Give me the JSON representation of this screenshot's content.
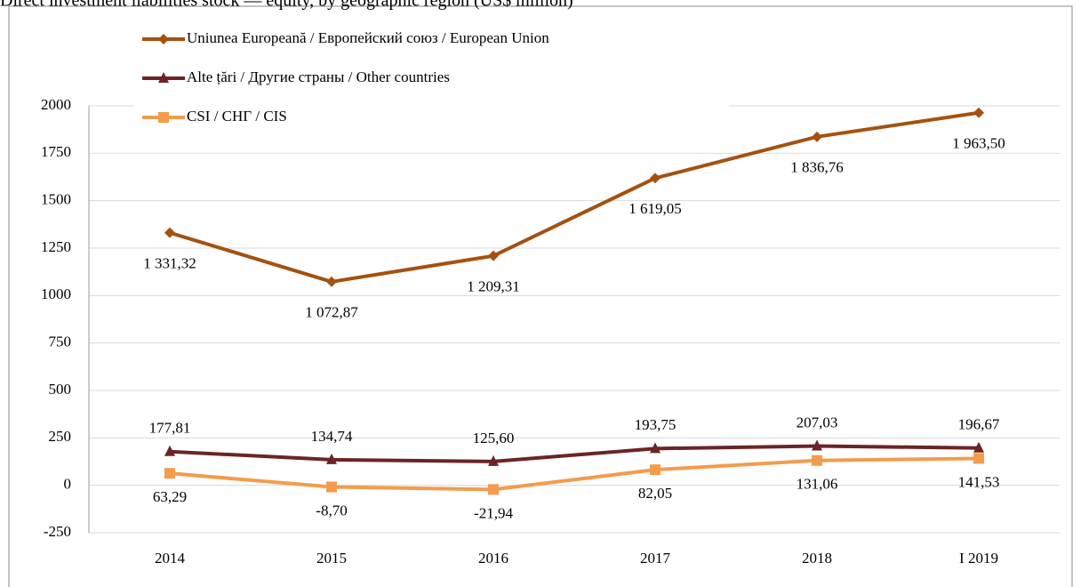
{
  "chart_data": {
    "type": "line",
    "title": "Direct investment liabilities stock — equity, by geographic region (US$ million)",
    "categories": [
      "2014",
      "2015",
      "2016",
      "2017",
      "2018",
      "I 2019"
    ],
    "series": [
      {
        "name": "Uniunea Europeană / Европейский союз / European Union",
        "color": "#a4520f",
        "marker": "diamond",
        "values": [
          1331.32,
          1072.87,
          1209.31,
          1619.05,
          1836.76,
          1963.5
        ],
        "value_labels": [
          "1 331,32",
          "1 072,87",
          "1 209,31",
          "1 619,05",
          "1 836,76",
          "1 963,50"
        ]
      },
      {
        "name": "Alte țări / Другие страны / Other countries",
        "color": "#6b2424",
        "marker": "triangle",
        "values": [
          177.81,
          134.74,
          125.6,
          193.75,
          207.03,
          196.67
        ],
        "value_labels": [
          "177,81",
          "134,74",
          "125,60",
          "193,75",
          "207,03",
          "196,67"
        ]
      },
      {
        "name": "CSI / СНГ / CIS",
        "color": "#f39c4c",
        "marker": "square",
        "values": [
          63.29,
          -8.7,
          -21.94,
          82.05,
          131.06,
          141.53
        ],
        "value_labels": [
          "63,29",
          "-8,70",
          "-21,94",
          "82,05",
          "131,06",
          "141,53"
        ]
      }
    ],
    "ylim": [
      -250,
      2000
    ],
    "yticks": [
      -250,
      0,
      250,
      500,
      750,
      1000,
      1250,
      1500,
      1750,
      2000
    ],
    "grid": true,
    "legend": "top-left"
  }
}
